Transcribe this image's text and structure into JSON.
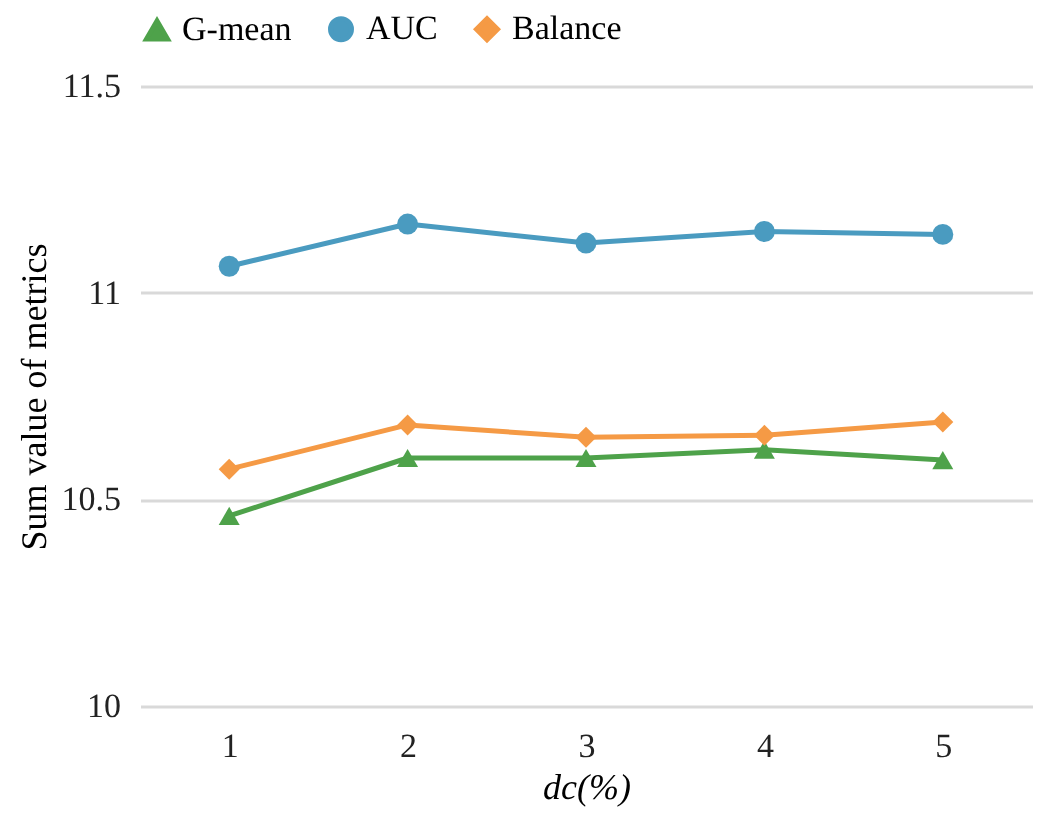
{
  "chart_data": {
    "type": "line",
    "xlabel": "dc(%)",
    "ylabel": "Sum value of metrics",
    "categories": [
      "1",
      "2",
      "3",
      "4",
      "5"
    ],
    "series": [
      {
        "name": "G-mean",
        "color": "#4ea24a",
        "marker": "triangle",
        "values": [
          10.46,
          10.6,
          10.6,
          10.62,
          10.595
        ]
      },
      {
        "name": "AUC",
        "color": "#4a9bc0",
        "marker": "circle",
        "values": [
          11.064,
          11.166,
          11.12,
          11.148,
          11.141
        ]
      },
      {
        "name": "Balance",
        "color": "#f59a45",
        "marker": "diamond",
        "values": [
          10.573,
          10.68,
          10.65,
          10.655,
          10.687
        ]
      }
    ],
    "ylim": [
      10,
      11.5
    ],
    "yticks": [
      10,
      10.5,
      11,
      11.5
    ],
    "grid": "y",
    "legend": "top",
    "line_style": "solid"
  }
}
